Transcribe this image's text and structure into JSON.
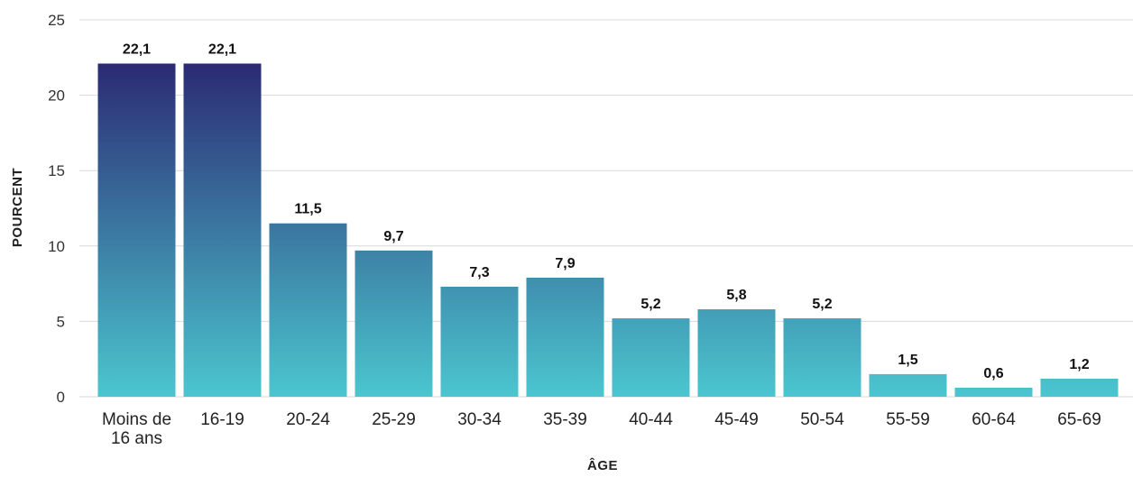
{
  "chart_data": {
    "type": "bar",
    "categories": [
      "Moins de 16 ans",
      "16-19",
      "20-24",
      "25-29",
      "30-34",
      "35-39",
      "40-44",
      "45-49",
      "50-54",
      "55-59",
      "60-64",
      "65-69"
    ],
    "category_lines": [
      [
        "Moins de",
        "16 ans"
      ],
      [
        "16-19"
      ],
      [
        "20-24"
      ],
      [
        "25-29"
      ],
      [
        "30-34"
      ],
      [
        "35-39"
      ],
      [
        "40-44"
      ],
      [
        "45-49"
      ],
      [
        "50-54"
      ],
      [
        "55-59"
      ],
      [
        "60-64"
      ],
      [
        "65-69"
      ]
    ],
    "values": [
      22.1,
      22.1,
      11.5,
      9.7,
      7.3,
      7.9,
      5.2,
      5.8,
      5.2,
      1.5,
      0.6,
      1.2
    ],
    "data_labels": [
      "22,1",
      "22,1",
      "11,5",
      "9,7",
      "7,3",
      "7,9",
      "5,2",
      "5,8",
      "5,2",
      "1,5",
      "0,6",
      "1,2"
    ],
    "xlabel": "ÂGE",
    "ylabel": "POURCENT",
    "ylim": [
      0,
      25
    ],
    "yticks": [
      0,
      5,
      10,
      15,
      20,
      25
    ],
    "grid": true,
    "colors": {
      "dark": "#2b2a73",
      "light": "#4bc6cf"
    }
  }
}
